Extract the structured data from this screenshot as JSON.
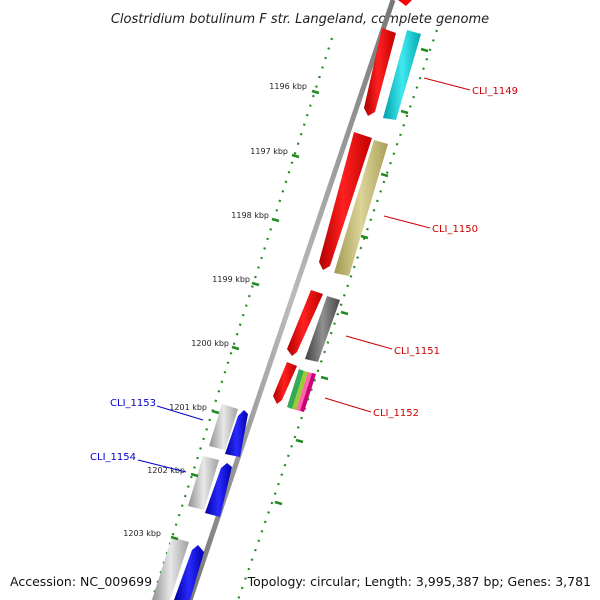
{
  "title": "Clostridium botulinum F str. Langeland, complete genome",
  "footer": {
    "accession": "Accession: NC_009699",
    "topology": "Topology: circular; Length: 3,995,387 bp; Genes: 3,781"
  },
  "ticks": [
    "1196 kbp",
    "1197 kbp",
    "1198 kbp",
    "1199 kbp",
    "1200 kbp",
    "1201 kbp",
    "1202 kbp",
    "1203 kbp"
  ],
  "genes": {
    "cli_1149": "CLI_1149",
    "cli_1150": "CLI_1150",
    "cli_1151": "CLI_1151",
    "cli_1152": "CLI_1152",
    "cli_1153": "CLI_1153",
    "cli_1154": "CLI_1154"
  },
  "colors": {
    "forward_label": "#cc0000",
    "reverse_label": "#0000cc",
    "cds_red": "#ff0000",
    "cds_blue": "#0000ee",
    "cog_cyan": "#00c8d0",
    "cog_khaki": "#c8c078",
    "cog_gray": "#666666",
    "backbone": "#888888",
    "ruler_dots": "#228b22"
  }
}
